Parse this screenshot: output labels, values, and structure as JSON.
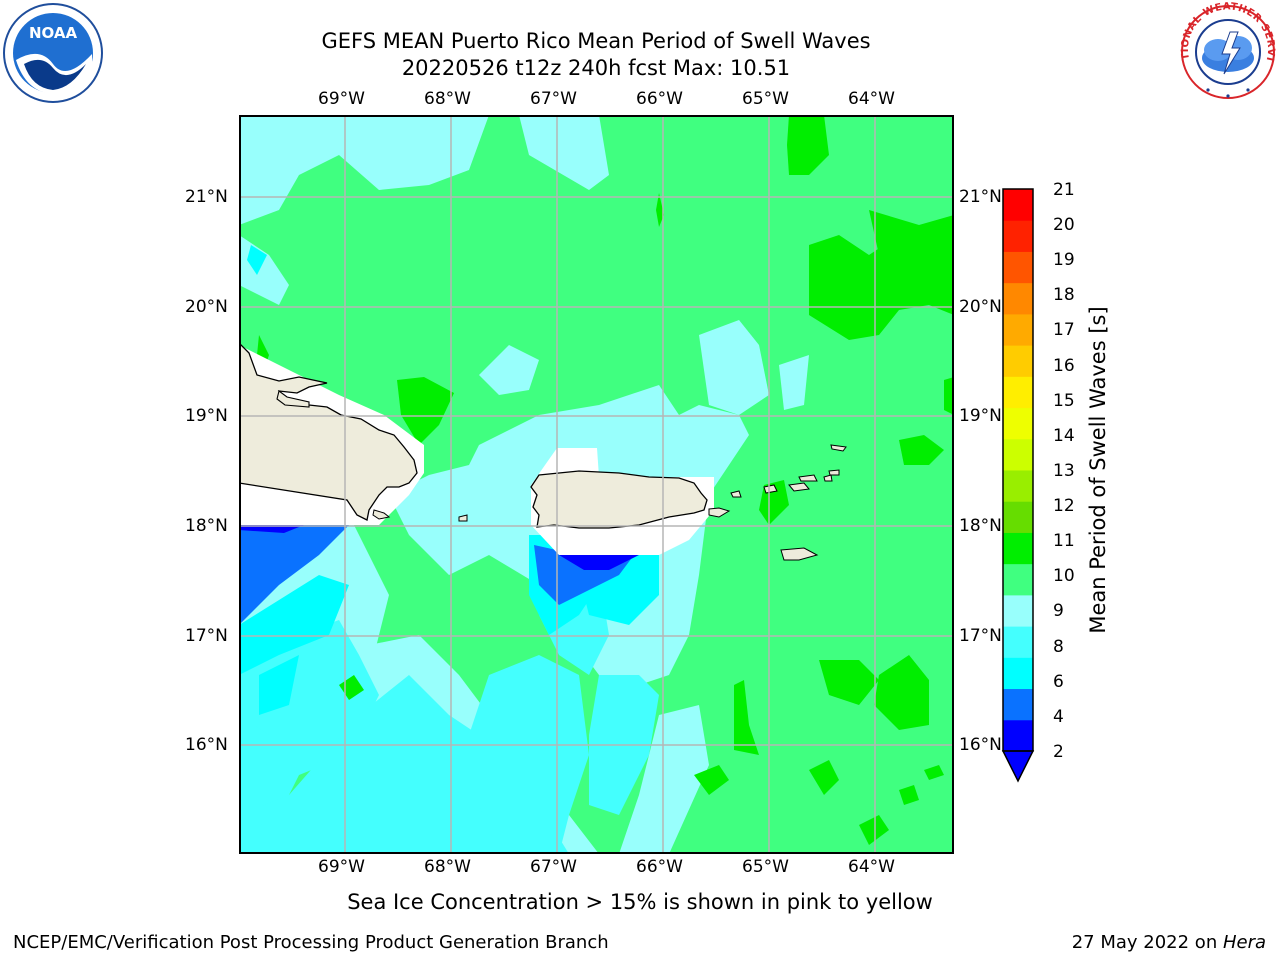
{
  "title": {
    "line1": "GEFS MEAN Puerto Rico Mean Period of Swell Waves",
    "line2": "20220526 t12z 240h fcst   Max: 10.51"
  },
  "logos": {
    "noaa": "NOAA",
    "nws": "NATIONAL WEATHER SERVICE"
  },
  "map": {
    "lon_labels": [
      "69°W",
      "68°W",
      "67°W",
      "66°W",
      "65°W",
      "64°W"
    ],
    "lat_labels": [
      "21°N",
      "20°N",
      "19°N",
      "18°N",
      "17°N",
      "16°N"
    ],
    "lon_range": [
      -70.0,
      -63.25
    ],
    "lat_range": [
      15.0,
      21.75
    ],
    "gridlines": true,
    "colors": {
      "land": "#eeecdc",
      "c2": "#0000ff",
      "c4": "#0a72ff",
      "c6": "#00ffff",
      "c8": "#44fffe",
      "c9": "#98fffc",
      "c10": "#40ff80",
      "c11": "#00ee00"
    }
  },
  "colorbar": {
    "label": "Mean Period of Swell Waves [s]",
    "ticks": [
      "21",
      "20",
      "19",
      "18",
      "17",
      "16",
      "15",
      "14",
      "13",
      "12",
      "11",
      "10",
      "9",
      "8",
      "6",
      "4",
      "2"
    ],
    "colors": [
      "#0000ff",
      "#0a72ff",
      "#00ffff",
      "#44fffe",
      "#98fffc",
      "#40ff80",
      "#00ee00",
      "#66dd00",
      "#99ee00",
      "#ccff00",
      "#eeff00",
      "#ffee00",
      "#ffcc00",
      "#ffaa00",
      "#ff8800",
      "#ff5500",
      "#ff2200",
      "#ff0000"
    ]
  },
  "footer": {
    "note": "Sea Ice Concentration > 15% is shown in pink to yellow",
    "left": "NCEP/EMC/Verification Post Processing Product Generation Branch",
    "right_date": "27 May 2022 on ",
    "right_host": "Hera"
  }
}
